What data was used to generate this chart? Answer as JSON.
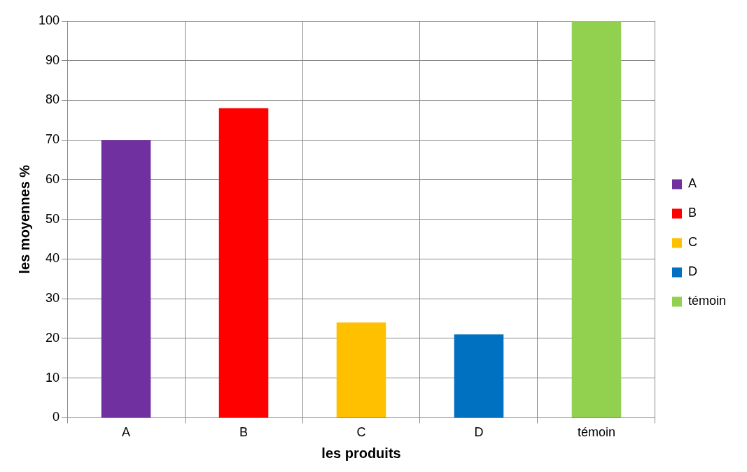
{
  "chart_data": {
    "type": "bar",
    "xlabel": "les produits",
    "ylabel": "les moyennes %",
    "categories": [
      "A",
      "B",
      "C",
      "D",
      "témoin"
    ],
    "series": [
      {
        "name": "A",
        "color": "#7030a0",
        "values": [
          70,
          null,
          null,
          null,
          null
        ]
      },
      {
        "name": "B",
        "color": "#ff0000",
        "values": [
          null,
          78,
          null,
          null,
          null
        ]
      },
      {
        "name": "C",
        "color": "#ffc000",
        "values": [
          null,
          null,
          24,
          null,
          null
        ]
      },
      {
        "name": "D",
        "color": "#0070c0",
        "values": [
          null,
          null,
          null,
          21,
          null
        ]
      },
      {
        "name": "témoin",
        "color": "#92d050",
        "values": [
          null,
          null,
          null,
          null,
          100
        ]
      }
    ],
    "ylim": [
      0,
      100
    ],
    "yticks": [
      0,
      10,
      20,
      30,
      40,
      50,
      60,
      70,
      80,
      90,
      100
    ],
    "grid": true,
    "legend": "right"
  }
}
